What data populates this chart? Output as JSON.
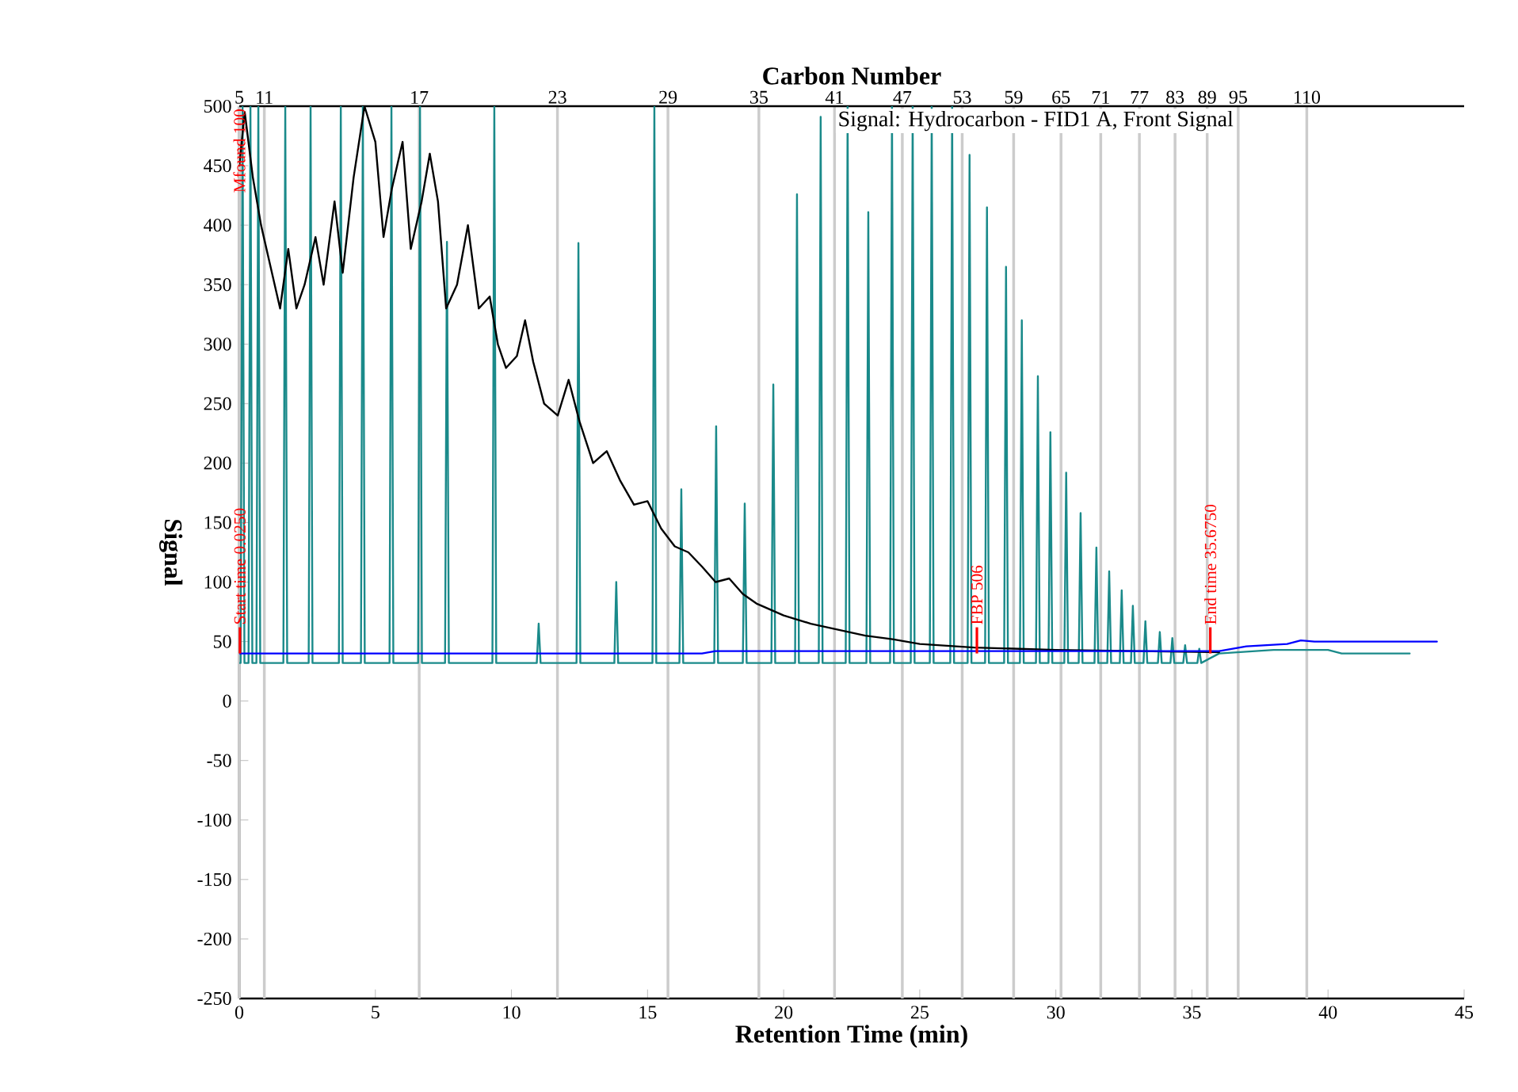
{
  "chart_data": {
    "type": "line",
    "xlabel": "Retention Time (min)",
    "ylabel": "Signal",
    "x2label": "Carbon Number",
    "xlim": [
      0,
      45
    ],
    "xticks": [
      0,
      5,
      10,
      15,
      20,
      25,
      30,
      35,
      40,
      45
    ],
    "ylim": [
      -250,
      500
    ],
    "yticks": [
      -250,
      -200,
      -150,
      -100,
      -50,
      0,
      50,
      100,
      150,
      200,
      250,
      300,
      350,
      400,
      450,
      500
    ],
    "series": [
      {
        "color": "#1a8a8a",
        "x": [
          0,
          0.05,
          0.12,
          0.19,
          0.34,
          0.41,
          0.48,
          0.63,
          0.7,
          0.77,
          1.62,
          1.69,
          1.76,
          2.55,
          2.62,
          2.69,
          3.66,
          3.73,
          3.8,
          4.47,
          4.54,
          4.61,
          5.52,
          5.59,
          5.66,
          6.57,
          6.64,
          6.71,
          7.56,
          7.63,
          7.7,
          9.3,
          9.37,
          9.44,
          10.93,
          11.0,
          11.07,
          12.39,
          12.46,
          12.53,
          13.78,
          13.85,
          13.92,
          15.18,
          15.25,
          15.32,
          16.17,
          16.24,
          16.31,
          17.45,
          17.52,
          17.59,
          18.5,
          18.57,
          18.64,
          19.55,
          19.62,
          19.69,
          20.42,
          20.49,
          20.56,
          21.29,
          21.36,
          21.43,
          22.28,
          22.35,
          22.42,
          23.04,
          23.11,
          23.18,
          23.91,
          23.98,
          24.05,
          24.67,
          24.74,
          24.81,
          25.37,
          25.44,
          25.51,
          26.12,
          26.19,
          26.26,
          26.76,
          26.83,
          26.9,
          27.4,
          27.47,
          27.54,
          28.1,
          28.17,
          28.24,
          28.68,
          28.75,
          28.82,
          29.27,
          29.34,
          29.41,
          29.73,
          29.8,
          29.87,
          30.31,
          30.38,
          30.45,
          30.84,
          30.91,
          30.98,
          31.42,
          31.49,
          31.56,
          31.89,
          31.96,
          32.03,
          32.35,
          32.42,
          32.49,
          32.76,
          32.83,
          32.9,
          33.22,
          33.29,
          33.36,
          33.75,
          33.82,
          33.89,
          34.21,
          34.28,
          34.35,
          34.68,
          34.75,
          34.82,
          35.2,
          35.27,
          35.34,
          36,
          38,
          40,
          40.5,
          43
        ],
        "values": [
          32,
          32,
          500,
          32,
          32,
          500,
          32,
          32,
          500,
          32,
          32,
          500,
          32,
          32,
          500,
          32,
          32,
          500,
          32,
          32,
          500,
          32,
          32,
          500,
          32,
          32,
          500,
          32,
          32,
          386,
          32,
          32,
          500,
          32,
          32,
          65,
          32,
          32,
          385,
          32,
          32,
          100,
          32,
          32,
          500,
          32,
          32,
          178,
          32,
          32,
          231,
          32,
          32,
          166,
          32,
          32,
          266,
          32,
          32,
          426,
          32,
          32,
          491,
          32,
          32,
          500,
          32,
          32,
          411,
          32,
          32,
          500,
          32,
          32,
          500,
          32,
          32,
          500,
          32,
          32,
          500,
          32,
          32,
          459,
          32,
          32,
          415,
          32,
          32,
          365,
          32,
          32,
          320,
          32,
          32,
          273,
          32,
          32,
          226,
          32,
          32,
          192,
          32,
          32,
          158,
          32,
          32,
          129,
          32,
          32,
          109,
          32,
          32,
          93,
          32,
          32,
          80,
          32,
          32,
          67,
          32,
          32,
          58,
          32,
          32,
          53,
          32,
          32,
          47,
          32,
          32,
          44,
          32,
          40,
          43,
          43,
          40,
          40
        ]
      },
      {
        "color": "#000000",
        "x": [
          0,
          0.2,
          0.5,
          0.8,
          1.2,
          1.5,
          1.8,
          2.1,
          2.4,
          2.8,
          3.1,
          3.5,
          3.8,
          4.2,
          4.6,
          5.0,
          5.3,
          5.6,
          6.0,
          6.3,
          6.7,
          7.0,
          7.3,
          7.6,
          8.0,
          8.4,
          8.8,
          9.2,
          9.5,
          9.8,
          10.2,
          10.5,
          10.8,
          11.2,
          11.7,
          12.1,
          12.5,
          13.0,
          13.5,
          14.0,
          14.5,
          15.0,
          15.5,
          16.0,
          16.5,
          17.0,
          17.5,
          18.0,
          18.5,
          19.0,
          20.0,
          21.0,
          22.0,
          23.0,
          24.0,
          25.0,
          27.0,
          30.0,
          33.0,
          36.0
        ],
        "values": [
          450,
          495,
          440,
          400,
          360,
          330,
          380,
          330,
          350,
          390,
          350,
          420,
          360,
          440,
          500,
          470,
          390,
          430,
          470,
          380,
          420,
          460,
          420,
          330,
          350,
          400,
          330,
          340,
          300,
          280,
          290,
          320,
          285,
          250,
          240,
          270,
          235,
          200,
          210,
          185,
          165,
          168,
          145,
          130,
          125,
          113,
          100,
          103,
          90,
          82,
          72,
          65,
          60,
          55,
          52,
          48,
          45,
          43,
          42,
          41
        ]
      },
      {
        "color": "#0000ff",
        "x": [
          0,
          17,
          17.5,
          36,
          37,
          38.5,
          39,
          39.5,
          44
        ],
        "values": [
          40,
          40,
          42,
          42,
          46,
          48,
          51,
          50,
          50
        ]
      }
    ],
    "ref_lines": [
      {
        "axis": "x",
        "value": 0,
        "color": "#cccccc",
        "line_style": "solid"
      },
      {
        "axis": "x",
        "value": 0.92,
        "color": "#cccccc",
        "line_style": "solid"
      },
      {
        "axis": "x",
        "value": 6.61,
        "color": "#cccccc",
        "line_style": "solid"
      },
      {
        "axis": "x",
        "value": 11.69,
        "color": "#cccccc",
        "line_style": "solid"
      },
      {
        "axis": "x",
        "value": 15.75,
        "color": "#cccccc",
        "line_style": "solid"
      },
      {
        "axis": "x",
        "value": 19.09,
        "color": "#cccccc",
        "line_style": "solid"
      },
      {
        "axis": "x",
        "value": 21.87,
        "color": "#cccccc",
        "line_style": "solid"
      },
      {
        "axis": "x",
        "value": 24.36,
        "color": "#cccccc",
        "line_style": "solid"
      },
      {
        "axis": "x",
        "value": 26.56,
        "color": "#cccccc",
        "line_style": "solid"
      },
      {
        "axis": "x",
        "value": 28.45,
        "color": "#cccccc",
        "line_style": "solid"
      },
      {
        "axis": "x",
        "value": 30.19,
        "color": "#cccccc",
        "line_style": "solid"
      },
      {
        "axis": "x",
        "value": 31.65,
        "color": "#cccccc",
        "line_style": "solid"
      },
      {
        "axis": "x",
        "value": 33.07,
        "color": "#cccccc",
        "line_style": "solid"
      },
      {
        "axis": "x",
        "value": 34.38,
        "color": "#cccccc",
        "line_style": "solid"
      },
      {
        "axis": "x",
        "value": 35.56,
        "color": "#cccccc",
        "line_style": "solid"
      },
      {
        "axis": "x",
        "value": 36.7,
        "color": "#cccccc",
        "line_style": "solid"
      },
      {
        "axis": "x",
        "value": 39.22,
        "color": "#cccccc",
        "line_style": "solid"
      },
      {
        "axis": "x",
        "value": 0.025,
        "label": "Start time 0.0250",
        "color": "#ff0000"
      },
      {
        "axis": "x",
        "value": 27.1,
        "label": "FBP 506",
        "color": "#ff0000"
      },
      {
        "axis": "x",
        "value": 35.675,
        "label": "End time 35.6750",
        "color": "#ff0000"
      }
    ],
    "annotations": [
      "Signal: Hydrocarbon - FID1 A, Front Signal",
      {
        "text": "5",
        "x": 0,
        "y": 500
      },
      {
        "text": "11",
        "x": 0.92,
        "y": 500
      },
      {
        "text": "17",
        "x": 6.61,
        "y": 500
      },
      {
        "text": "23",
        "x": 11.69,
        "y": 500
      },
      {
        "text": "29",
        "x": 15.75,
        "y": 500
      },
      {
        "text": "35",
        "x": 19.09,
        "y": 500
      },
      {
        "text": "41",
        "x": 21.87,
        "y": 500
      },
      {
        "text": "47",
        "x": 24.36,
        "y": 500
      },
      {
        "text": "53",
        "x": 26.56,
        "y": 500
      },
      {
        "text": "59",
        "x": 28.45,
        "y": 500
      },
      {
        "text": "65",
        "x": 30.19,
        "y": 500
      },
      {
        "text": "71",
        "x": 31.65,
        "y": 500
      },
      {
        "text": "77",
        "x": 33.07,
        "y": 500
      },
      {
        "text": "83",
        "x": 34.38,
        "y": 500
      },
      {
        "text": "89",
        "x": 35.56,
        "y": 500
      },
      {
        "text": "95",
        "x": 36.7,
        "y": 500
      },
      {
        "text": "110",
        "x": 39.22,
        "y": 500
      },
      {
        "text": "Mfound 100",
        "x": 0,
        "y": 500
      }
    ]
  }
}
